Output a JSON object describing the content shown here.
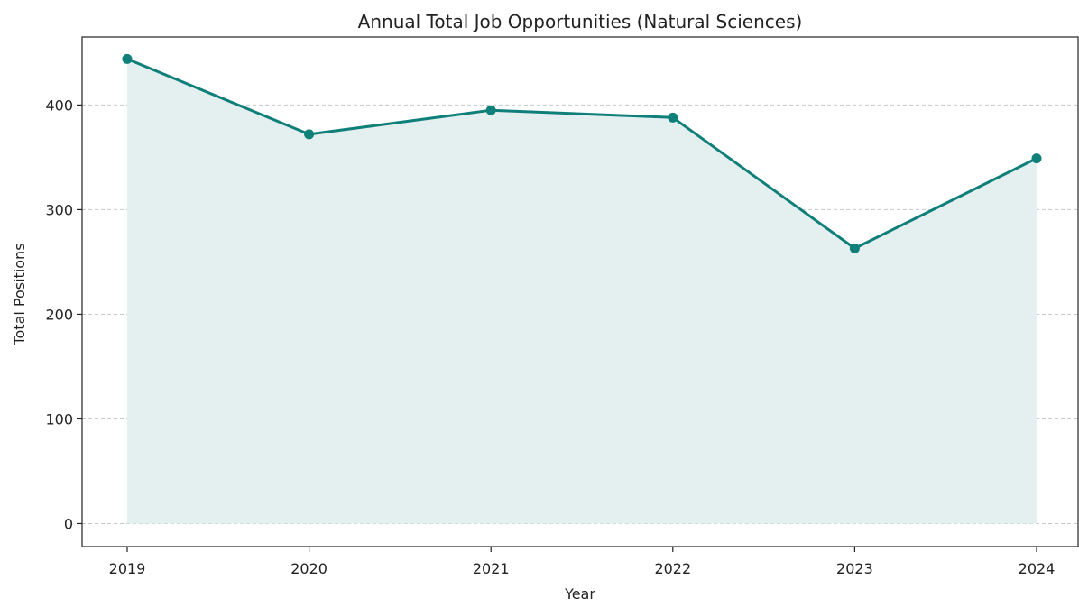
{
  "chart_data": {
    "type": "area",
    "title": "Annual Total Job Opportunities (Natural Sciences)",
    "xlabel": "Year",
    "ylabel": "Total Positions",
    "categories": [
      "2019",
      "2020",
      "2021",
      "2022",
      "2023",
      "2024"
    ],
    "series": [
      {
        "values": [
          444,
          372,
          395,
          388,
          263,
          349
        ]
      }
    ],
    "ylim": [
      -22,
      465
    ],
    "yticks": [
      0,
      100,
      200,
      300,
      400
    ],
    "grid": "horizontal, dashed",
    "legend": "none",
    "colors": {
      "line": "#0f7f7a",
      "fill": "#e4efef",
      "grid": "#c4c9cc",
      "axis": "#222222"
    }
  }
}
